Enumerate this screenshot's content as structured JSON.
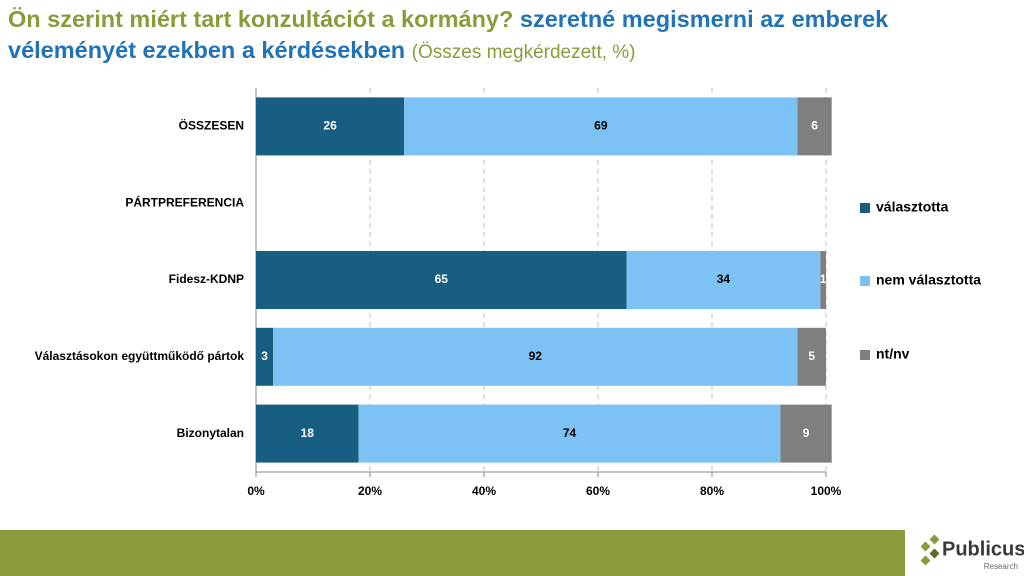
{
  "chart_data": {
    "type": "stacked_barh",
    "title": [
      "Ön szerint miért tart konzultációt a kormány?",
      "szeretné megismerni az emberek véleményét ezekben a kérdésekben",
      "(Összes megkérdezett, %)"
    ],
    "categories": [
      "ÖSSZESEN",
      "PÁRTPREFERENCIA",
      "Fidesz-KDNP",
      "Választásokon együttműködő pártok",
      "Bizonytalan"
    ],
    "series": [
      {
        "name": "választotta",
        "color": "#175e82",
        "values": [
          26,
          null,
          65,
          3,
          18
        ]
      },
      {
        "name": "nem választotta",
        "color": "#7dc2f4",
        "values": [
          69,
          null,
          34,
          92,
          74
        ]
      },
      {
        "name": "nt/nv",
        "color": "#7f7f7f",
        "values": [
          6,
          null,
          1,
          5,
          9
        ]
      }
    ],
    "xlim": [
      0,
      100
    ],
    "xticks": [
      {
        "value": 0,
        "label": "0%"
      },
      {
        "value": 20,
        "label": "20%"
      },
      {
        "value": 40,
        "label": "40%"
      },
      {
        "value": 60,
        "label": "60%"
      },
      {
        "value": 80,
        "label": "80%"
      },
      {
        "value": 100,
        "label": "100%"
      }
    ],
    "grid": true,
    "legend": "right"
  },
  "footer": {
    "logo": "Publicus",
    "logo_sub": "Research"
  }
}
